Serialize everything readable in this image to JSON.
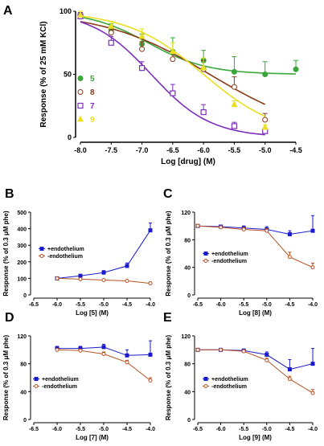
{
  "chart_data": [
    {
      "panel": "A",
      "type": "line",
      "xlabel": "Log [drug] (M)",
      "ylabel": "Response (% of 25 mM KCl)",
      "xlim": [
        -8.0,
        -4.5
      ],
      "ylim": [
        0,
        100
      ],
      "xticks": [
        "-8.0",
        "-7.5",
        "-7.0",
        "-6.5",
        "-6.0",
        "-5.5",
        "-5.0",
        "-4.5"
      ],
      "yticks": [
        "0",
        "50",
        "100"
      ],
      "legend_position": "left",
      "series": [
        {
          "name": "5",
          "color": "#3aa63a",
          "marker": "filled-circle",
          "x": [
            -8.0,
            -7.5,
            -7.0,
            -6.5,
            -6.0,
            -5.5,
            -5.0,
            -4.5
          ],
          "y": [
            97,
            85,
            74,
            68,
            61,
            52,
            50,
            54
          ],
          "err": [
            3,
            5,
            8,
            11,
            8,
            12,
            10,
            7
          ],
          "fit": {
            "bottom": 50,
            "top": 100,
            "logec50": -6.9,
            "hill": 0.9
          }
        },
        {
          "name": "8",
          "color": "#8b3a1a",
          "marker": "open-circle",
          "x": [
            -8.0,
            -7.5,
            -7.0,
            -6.5,
            -6.0,
            -5.5,
            -5.0
          ],
          "y": [
            96,
            83,
            70,
            62,
            54,
            40,
            14
          ],
          "err": [
            3,
            5,
            6,
            6,
            7,
            8,
            5
          ],
          "fit": {
            "bottom": 0,
            "top": 100,
            "logec50": -5.9,
            "hill": 0.5
          }
        },
        {
          "name": "7",
          "color": "#7b2fbe",
          "marker": "open-square",
          "x": [
            -8.0,
            -7.5,
            -7.0,
            -6.5,
            -6.0,
            -5.5,
            -5.0
          ],
          "y": [
            96,
            75,
            55,
            35,
            20,
            9,
            5
          ],
          "err": [
            3,
            5,
            5,
            7,
            6,
            3,
            2
          ],
          "fit": {
            "bottom": 0,
            "top": 100,
            "logec50": -6.85,
            "hill": 0.9
          }
        },
        {
          "name": "9",
          "color": "#e8e020",
          "marker": "filled-triangle",
          "x": [
            -8.0,
            -7.5,
            -7.0,
            -6.5,
            -6.0,
            -5.5,
            -5.0
          ],
          "y": [
            97,
            88,
            80,
            68,
            55,
            26,
            8
          ],
          "err": [
            3,
            4,
            6,
            7,
            8,
            3,
            2
          ],
          "fit": {
            "bottom": 0,
            "top": 100,
            "logec50": -6.0,
            "hill": 0.7
          }
        }
      ]
    },
    {
      "panel": "B",
      "type": "line",
      "xlabel": "Log [5] (M)",
      "ylabel": "Response (% of 0.3 μM phe)",
      "xlim": [
        -6.5,
        -4.0
      ],
      "ylim": [
        0,
        500
      ],
      "xticks": [
        "-6.5",
        "-6.0",
        "-5.5",
        "-5.0",
        "-4.5",
        "-4.0"
      ],
      "yticks": [
        "0",
        "100",
        "200",
        "300",
        "400",
        "500"
      ],
      "legend_position": "left",
      "series": [
        {
          "name": "+endothelium",
          "color": "#1a1acc",
          "marker": "filled-square",
          "x": [
            -6.0,
            -5.5,
            -5.0,
            -4.5,
            -4.0
          ],
          "y": [
            100,
            115,
            135,
            175,
            390
          ],
          "err": [
            8,
            10,
            12,
            18,
            45
          ]
        },
        {
          "name": "-endothelium",
          "color": "#b85020",
          "marker": "open-circle",
          "x": [
            -6.0,
            -5.5,
            -5.0,
            -4.5,
            -4.0
          ],
          "y": [
            100,
            95,
            90,
            85,
            70
          ],
          "err": [
            6,
            5,
            5,
            6,
            8
          ]
        }
      ]
    },
    {
      "panel": "C",
      "type": "line",
      "xlabel": "Log [8] (M)",
      "ylabel": "Response (% of 0.3 μM phe)",
      "xlim": [
        -6.5,
        -4.0
      ],
      "ylim": [
        0,
        120
      ],
      "xticks": [
        "-6.5",
        "-6.0",
        "-5.5",
        "-5.0",
        "-4.5",
        "-4.0"
      ],
      "yticks": [
        "0",
        "40",
        "80",
        "120"
      ],
      "legend_position": "right",
      "series": [
        {
          "name": "+endothelium",
          "color": "#1a1acc",
          "marker": "filled-square",
          "x": [
            -6.5,
            -6.0,
            -5.5,
            -5.0,
            -4.5,
            -4.0
          ],
          "y": [
            100,
            99,
            97,
            95,
            88,
            93
          ],
          "err": [
            2,
            2,
            3,
            4,
            5,
            22
          ]
        },
        {
          "name": "-endothelium",
          "color": "#b85020",
          "marker": "open-circle",
          "x": [
            -6.5,
            -6.0,
            -5.5,
            -5.0,
            -4.5,
            -4.0
          ],
          "y": [
            100,
            98,
            95,
            93,
            55,
            40
          ],
          "err": [
            2,
            2,
            3,
            3,
            7,
            6
          ]
        }
      ]
    },
    {
      "panel": "D",
      "type": "line",
      "xlabel": "Log [7] (M)",
      "ylabel": "Response (% of 0.3 μM phe)",
      "xlim": [
        -6.5,
        -4.0
      ],
      "ylim": [
        0,
        120
      ],
      "xticks": [
        "-6.5",
        "-6.0",
        "-5.5",
        "-5.0",
        "-4.5",
        "-4.0"
      ],
      "yticks": [
        "0",
        "40",
        "80",
        "120"
      ],
      "legend_position": "left",
      "series": [
        {
          "name": "+endothelium",
          "color": "#1a1acc",
          "marker": "filled-square",
          "x": [
            -6.0,
            -5.5,
            -5.0,
            -4.5,
            -4.0
          ],
          "y": [
            102,
            102,
            104,
            92,
            93
          ],
          "err": [
            3,
            3,
            4,
            8,
            20
          ]
        },
        {
          "name": "-endothelium",
          "color": "#b85020",
          "marker": "open-circle",
          "x": [
            -6.0,
            -5.5,
            -5.0,
            -4.5,
            -4.0
          ],
          "y": [
            100,
            99,
            94,
            82,
            56
          ],
          "err": [
            2,
            2,
            3,
            3,
            4
          ]
        }
      ]
    },
    {
      "panel": "E",
      "type": "line",
      "xlabel": "Log [9] (M)",
      "ylabel": "Response (% of 0.3 μM phe)",
      "xlim": [
        -6.5,
        -4.0
      ],
      "ylim": [
        0,
        120
      ],
      "xticks": [
        "-6.5",
        "-6.0",
        "-5.5",
        "-5.0",
        "-4.5",
        "-4.0"
      ],
      "yticks": [
        "0",
        "40",
        "80",
        "120"
      ],
      "legend_position": "right",
      "series": [
        {
          "name": "+endothelium",
          "color": "#1a1acc",
          "marker": "filled-square",
          "x": [
            -6.5,
            -6.0,
            -5.5,
            -5.0,
            -4.5,
            -4.0
          ],
          "y": [
            100,
            100,
            99,
            93,
            72,
            80
          ],
          "err": [
            2,
            2,
            2,
            4,
            14,
            22
          ]
        },
        {
          "name": "-endothelium",
          "color": "#b85020",
          "marker": "open-circle",
          "x": [
            -6.5,
            -6.0,
            -5.5,
            -5.0,
            -4.5,
            -4.0
          ],
          "y": [
            100,
            100,
            98,
            85,
            58,
            38
          ],
          "err": [
            2,
            2,
            2,
            3,
            4,
            5
          ]
        }
      ]
    }
  ]
}
